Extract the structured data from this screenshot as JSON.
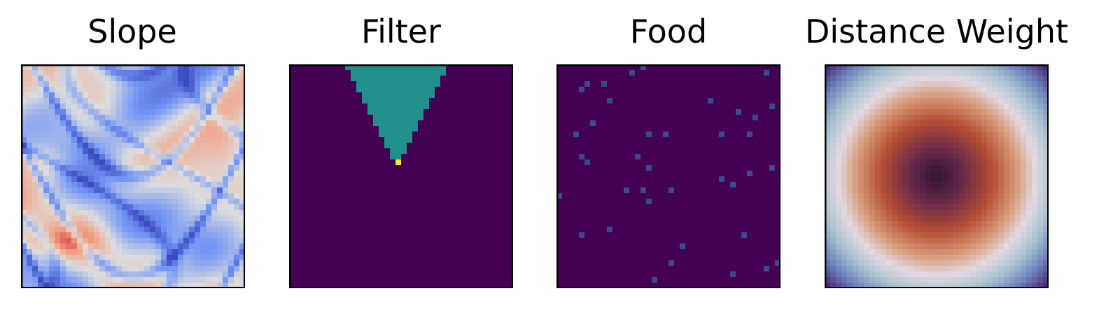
{
  "chart_data": [
    {
      "type": "heatmap",
      "title": "Slope",
      "colormap": "coolwarm",
      "grid": 40,
      "description_values": "value field of a swirling slope pattern, low (blue) to high (red)",
      "colors": {
        "low": "#3b4cc0",
        "mid": "#dddddd",
        "high": "#b40426"
      }
    },
    {
      "type": "heatmap",
      "title": "Filter",
      "colormap": "viridis",
      "grid": 40,
      "background_value": 0,
      "cone_value": 0.5,
      "center_value": 1,
      "cone": {
        "apex": [
          17,
          19
        ],
        "top_row": 0,
        "top_left_col": 10,
        "top_right_col": 27
      },
      "colors": {
        "zero": "#440154",
        "half": "#21908d",
        "one": "#fde725"
      }
    },
    {
      "type": "heatmap",
      "title": "Food",
      "colormap": "viridis",
      "grid": 40,
      "food_cells": [
        [
          13,
          1
        ],
        [
          8,
          3
        ],
        [
          4,
          4
        ],
        [
          5,
          3
        ],
        [
          9,
          6
        ],
        [
          15,
          0
        ],
        [
          37,
          1
        ],
        [
          38,
          7
        ],
        [
          27,
          6
        ],
        [
          32,
          8
        ],
        [
          35,
          9
        ],
        [
          3,
          12
        ],
        [
          6,
          10
        ],
        [
          16,
          12
        ],
        [
          19,
          12
        ],
        [
          29,
          12
        ],
        [
          34,
          12
        ],
        [
          4,
          16
        ],
        [
          14,
          16
        ],
        [
          5,
          17
        ],
        [
          16,
          18
        ],
        [
          38,
          18
        ],
        [
          34,
          19
        ],
        [
          29,
          20
        ],
        [
          31,
          21
        ],
        [
          12,
          22
        ],
        [
          15,
          22
        ],
        [
          20,
          22
        ],
        [
          0,
          23
        ],
        [
          16,
          24
        ],
        [
          4,
          30
        ],
        [
          9,
          29
        ],
        [
          33,
          30
        ],
        [
          22,
          32
        ],
        [
          20,
          35
        ],
        [
          31,
          37
        ],
        [
          39,
          35
        ],
        [
          17,
          38
        ],
        [
          37,
          36
        ]
      ],
      "colors": {
        "zero": "#440154",
        "food": "#3a4b8b"
      }
    },
    {
      "type": "heatmap",
      "title": "Distance Weight",
      "colormap": "twilight",
      "grid": 40,
      "ring_radius_fraction": 0.62,
      "colors": {
        "center": "#2f1436",
        "inner": "#b44e32",
        "ring": "#e2d9e2",
        "outer": "#5a3a8a"
      }
    }
  ]
}
